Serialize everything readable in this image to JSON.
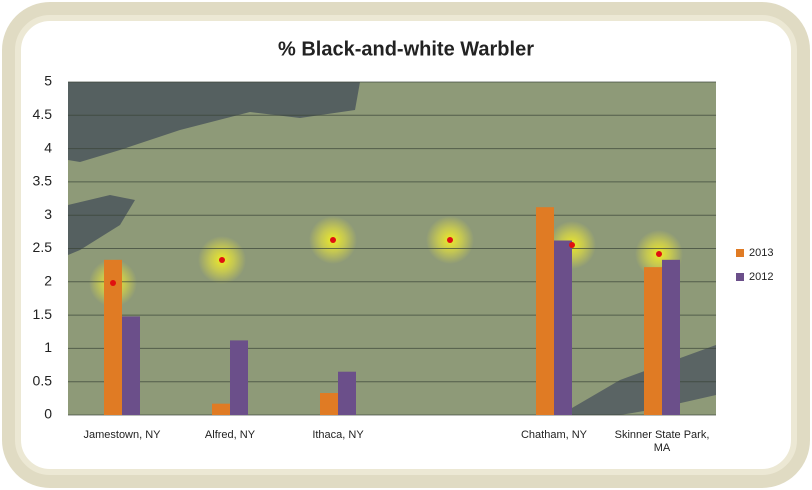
{
  "chart_data": {
    "type": "bar",
    "title": "% Black-and-white Warbler",
    "categories": [
      "Jamestown, NY",
      "Alfred, NY",
      "Ithaca, NY",
      null,
      "Chatham, NY",
      "Skinner State Park, MA"
    ],
    "series": [
      {
        "name": "2013",
        "color": "#e07b24",
        "values": [
          2.33,
          0.17,
          0.33,
          null,
          3.12,
          2.22
        ]
      },
      {
        "name": "2012",
        "color": "#6b4f8a",
        "values": [
          1.48,
          1.12,
          0.65,
          null,
          2.62,
          2.33
        ]
      }
    ],
    "ylim": [
      0,
      5
    ],
    "yticks": [
      0,
      0.5,
      1,
      1.5,
      2,
      2.5,
      3,
      3.5,
      4,
      4.5,
      5
    ],
    "grid": true,
    "legend": "right"
  }
}
